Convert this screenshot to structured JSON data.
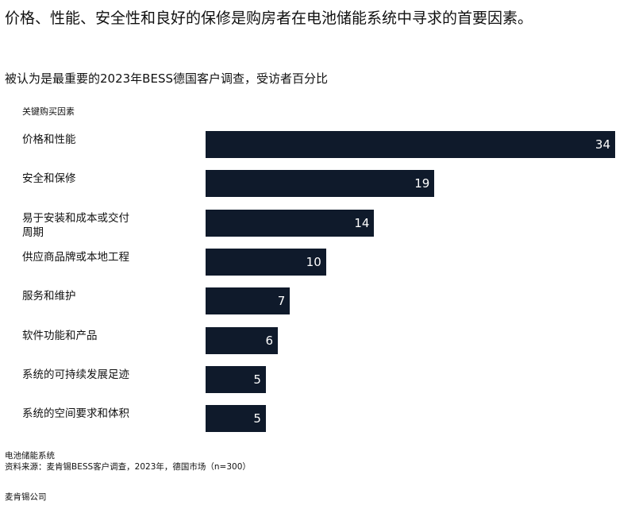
{
  "chart_data": {
    "type": "bar",
    "orientation": "horizontal",
    "title": "价格、性能、安全性和良好的保修是购房者在电池储能系统中寻求的首要因素。",
    "subtitle": "被认为是最重要的2023年BESS德国客户调查，受访者百分比",
    "ylabel": "关键购买因素",
    "categories": [
      "价格和性能",
      "安全和保修",
      "易于安装和成本或交付周期",
      "供应商品牌或本地工程",
      "服务和维护",
      "软件功能和产品",
      "系统的可持续发展足迹",
      "系统的空间要求和体积"
    ],
    "values": [
      34,
      19,
      14,
      10,
      7,
      6,
      5,
      5
    ],
    "xlim": [
      0,
      34
    ],
    "bar_color": "#0f1a2b",
    "grid": false,
    "data_labels": true
  },
  "footer": {
    "note": "电池储能系统",
    "source": "资料来源：麦肯锡BESS客户调查，2023年，德国市场（n=300）",
    "brand": "麦肯锡公司"
  }
}
